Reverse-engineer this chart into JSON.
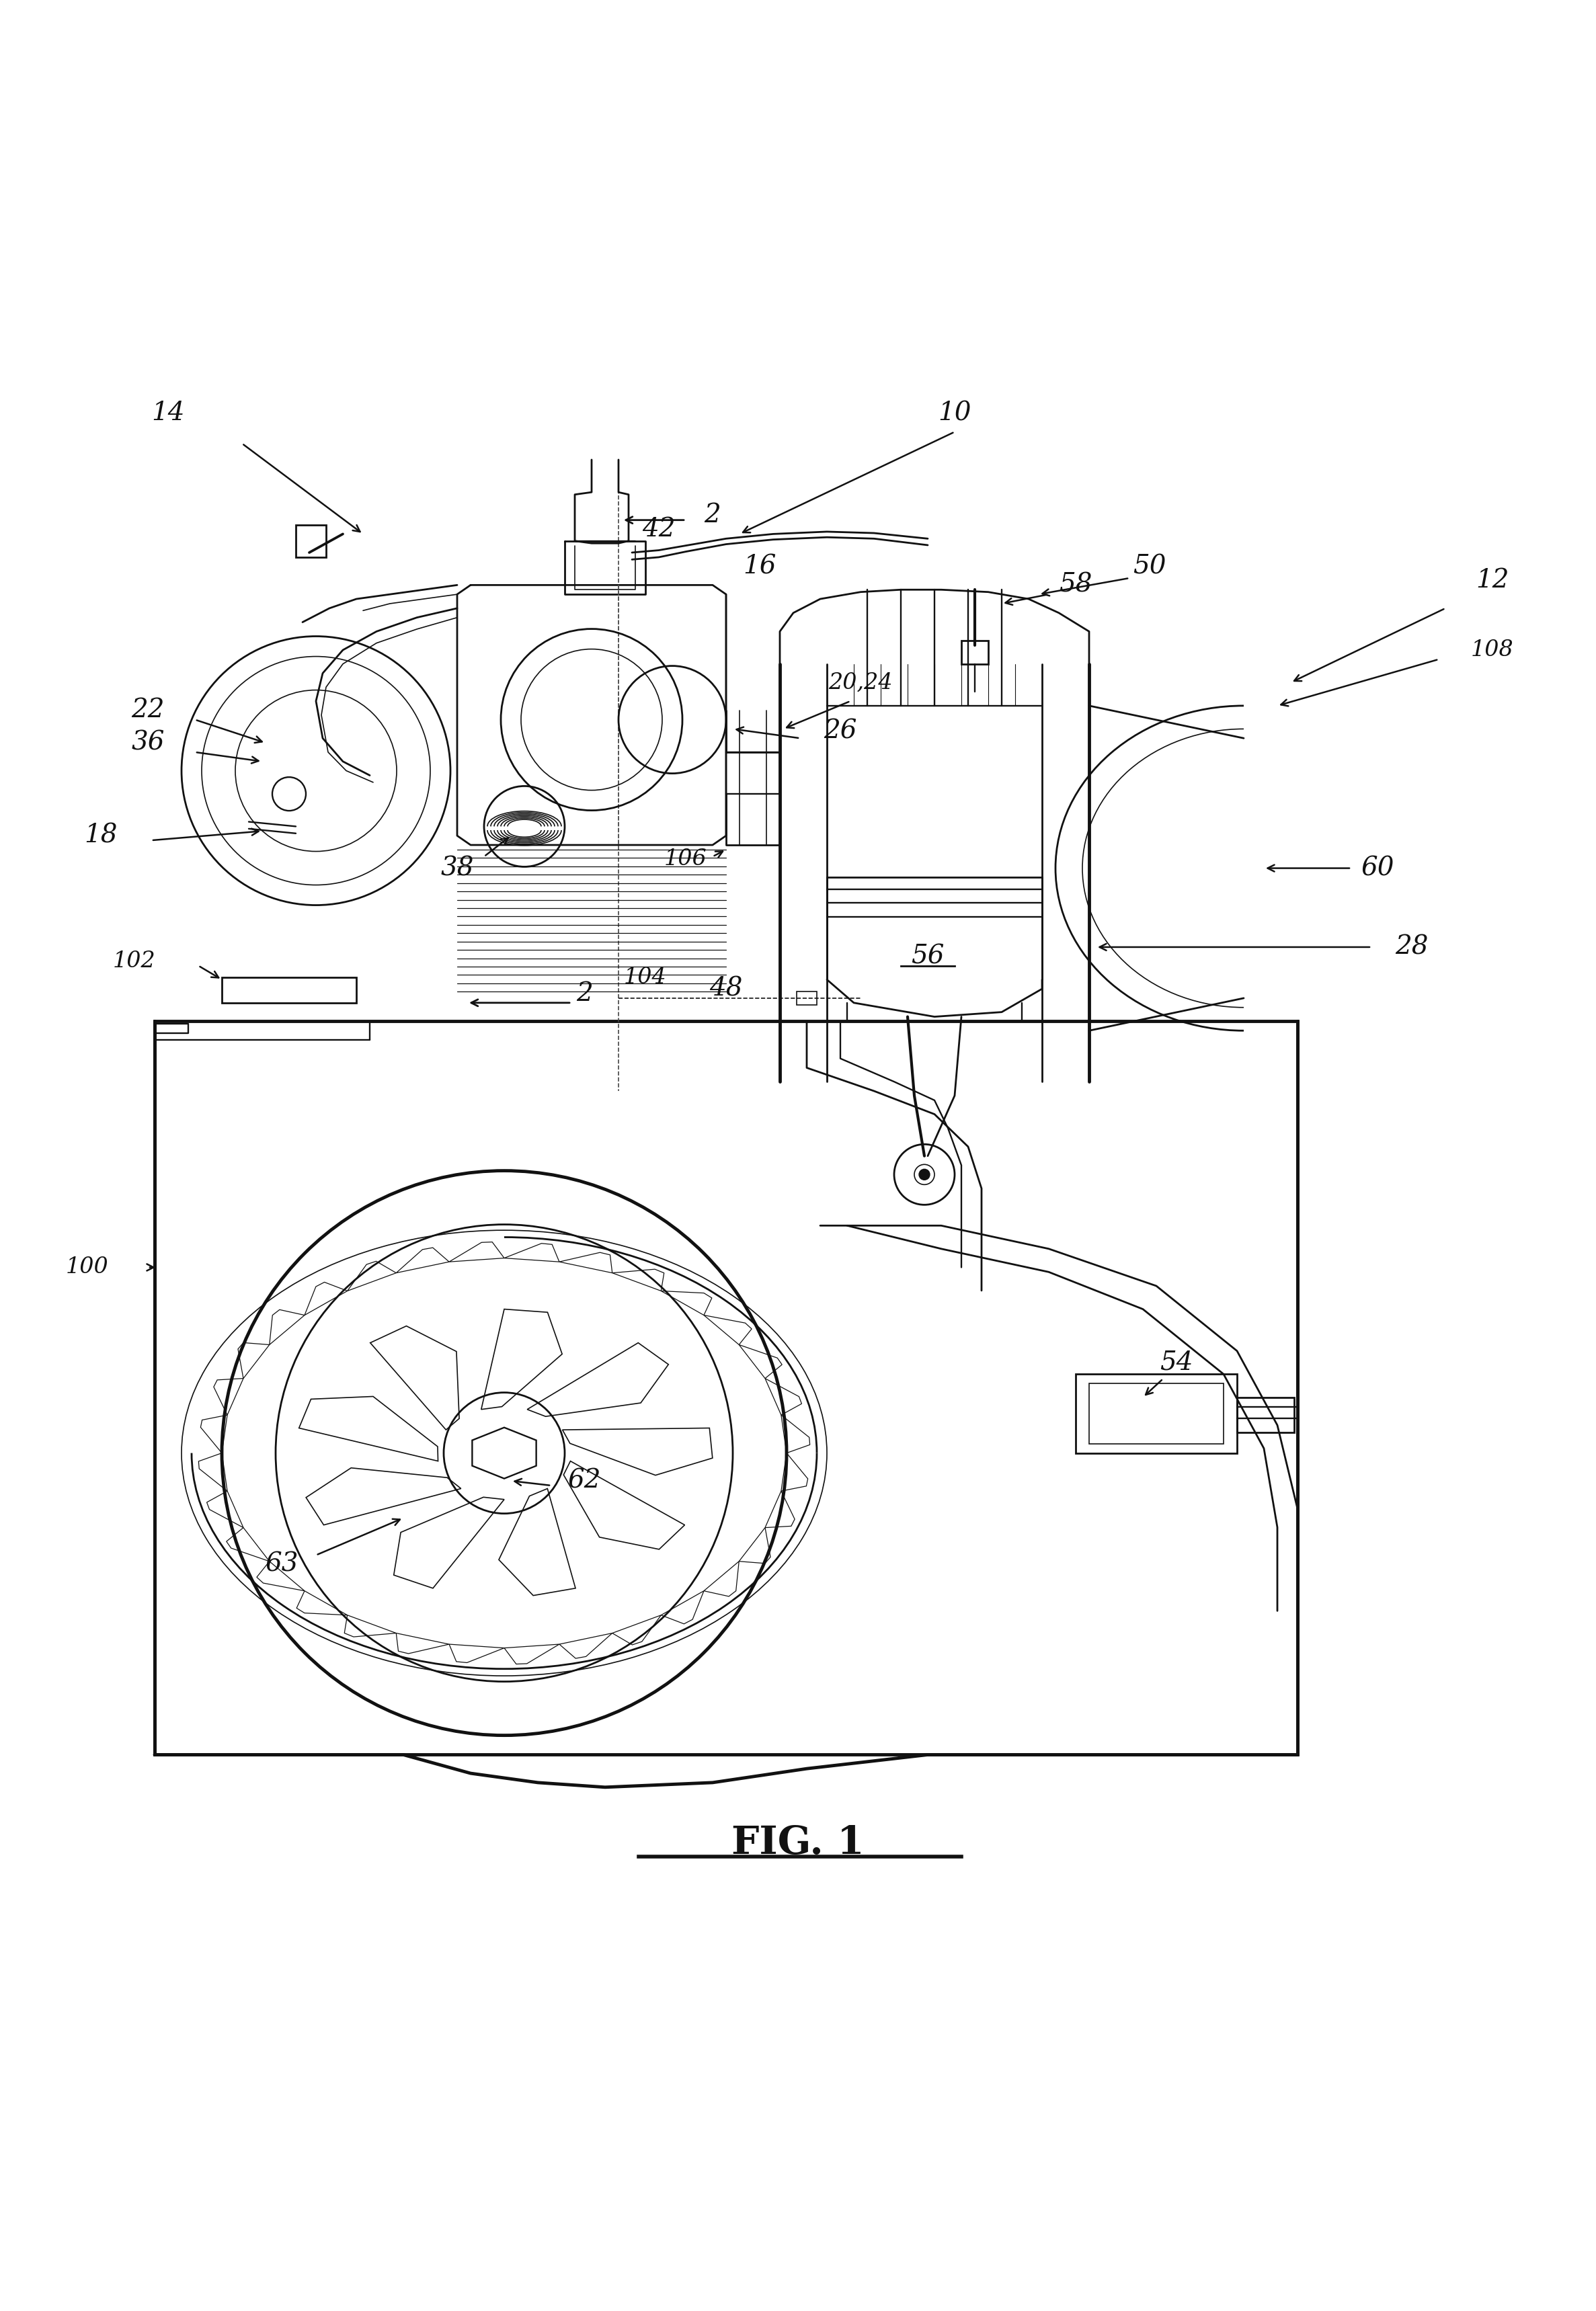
{
  "bg_color": "#ffffff",
  "line_color": "#111111",
  "fig_label": "FIG. 1",
  "lw_main": 2.0,
  "lw_thin": 1.2,
  "lw_thick": 3.5,
  "lw_med": 1.7,
  "label_fs": 28,
  "label_fs_sm": 24,
  "fig_label_fs": 42
}
